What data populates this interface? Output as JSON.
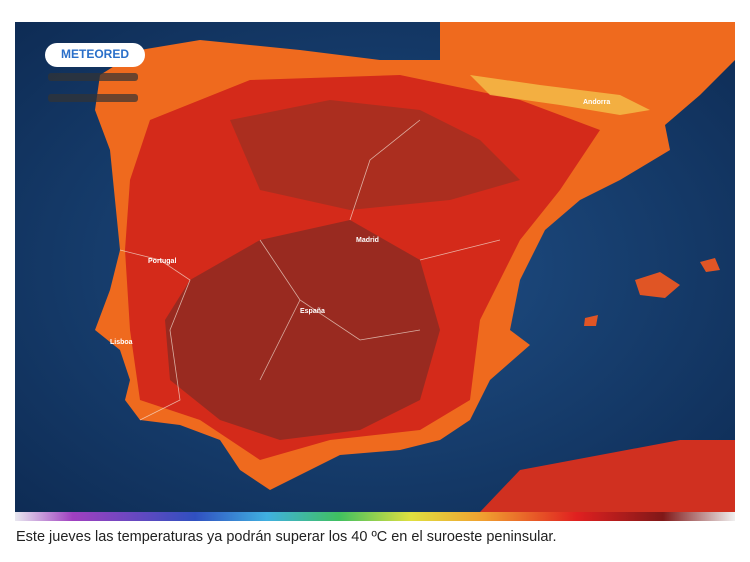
{
  "logo": {
    "brand": "METEORED"
  },
  "map": {
    "labels": [
      "Andorra",
      "Madrid",
      "Portugal",
      "España",
      "Lisboa"
    ]
  },
  "caption": "Este jueves las temperaturas ya podrán superar los 40 ºC en el suroeste peninsular."
}
